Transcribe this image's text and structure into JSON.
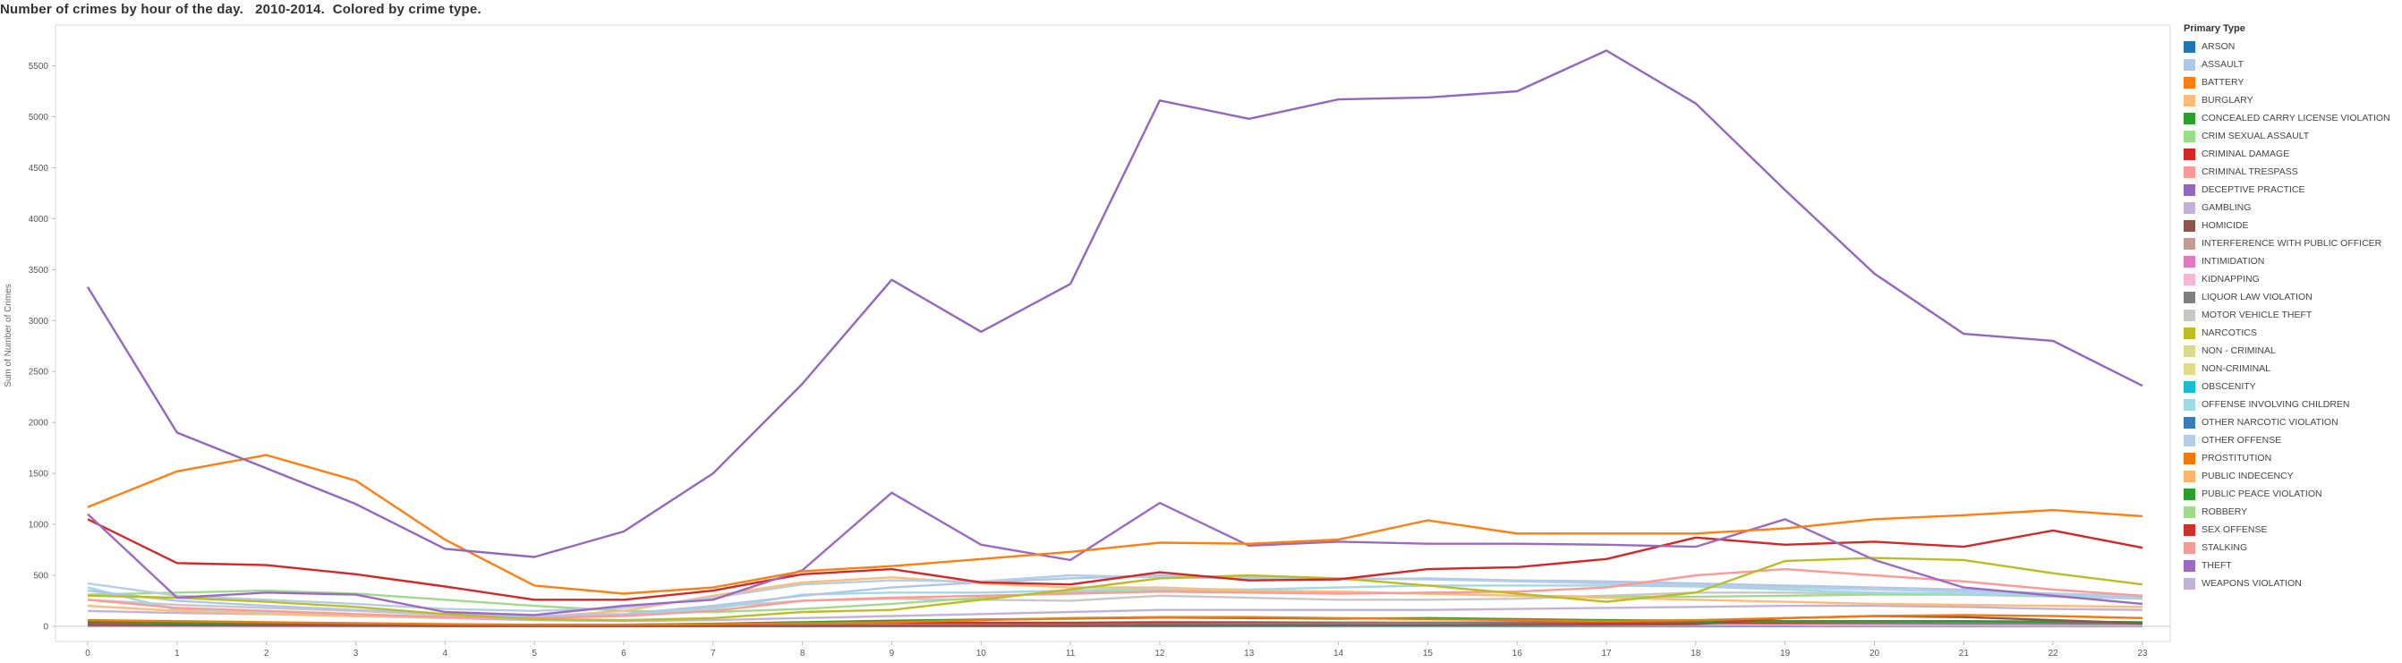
{
  "chart_data": {
    "type": "line",
    "title": "Number of crimes by hour of the day.   2010-2014.  Colored by crime type.",
    "xlabel": "",
    "ylabel": "Sum of Number of Crimes",
    "x": [
      0,
      1,
      2,
      3,
      4,
      5,
      6,
      7,
      8,
      9,
      10,
      11,
      12,
      13,
      14,
      15,
      16,
      17,
      18,
      19,
      20,
      21,
      22,
      23
    ],
    "xticks": [
      0,
      1,
      2,
      3,
      4,
      5,
      6,
      7,
      8,
      9,
      10,
      11,
      12,
      13,
      14,
      15,
      16,
      17,
      18,
      19,
      20,
      21,
      22,
      23
    ],
    "yticks": [
      0,
      500,
      1000,
      1500,
      2000,
      2500,
      3000,
      3500,
      4000,
      4500,
      5000,
      5500
    ],
    "ylim": [
      -150,
      5900
    ],
    "grid": false,
    "legend_title": "Primary Type",
    "legend_position": "right",
    "series": [
      {
        "name": "ARSON",
        "color": "#1f77b4",
        "values": [
          8,
          7,
          6,
          5,
          5,
          4,
          3,
          3,
          4,
          5,
          5,
          6,
          6,
          6,
          6,
          7,
          7,
          7,
          8,
          8,
          9,
          9,
          9,
          9
        ]
      },
      {
        "name": "ASSAULT",
        "color": "#aec7e8",
        "values": [
          350,
          250,
          200,
          160,
          120,
          100,
          120,
          200,
          300,
          380,
          430,
          470,
          500,
          480,
          460,
          470,
          450,
          440,
          420,
          400,
          380,
          360,
          320,
          290
        ]
      },
      {
        "name": "BATTERY",
        "color": "#ff7f0e",
        "values": [
          1170,
          1520,
          1680,
          1430,
          850,
          400,
          320,
          380,
          540,
          590,
          660,
          730,
          820,
          810,
          850,
          1040,
          910,
          910,
          910,
          960,
          1050,
          1090,
          1140,
          1080
        ]
      },
      {
        "name": "BURGLARY",
        "color": "#ffbb78",
        "values": [
          200,
          150,
          120,
          100,
          90,
          90,
          150,
          300,
          430,
          480,
          420,
          380,
          380,
          350,
          340,
          320,
          300,
          280,
          260,
          240,
          220,
          210,
          200,
          190
        ]
      },
      {
        "name": "CONCEALED CARRY LICENSE VIOLATION",
        "color": "#2ca02c",
        "values": [
          2,
          2,
          1,
          1,
          1,
          1,
          1,
          1,
          1,
          1,
          2,
          2,
          2,
          2,
          2,
          2,
          2,
          2,
          2,
          2,
          2,
          2,
          2,
          2
        ]
      },
      {
        "name": "CRIM SEXUAL ASSAULT",
        "color": "#98df8a",
        "values": [
          30,
          25,
          20,
          15,
          10,
          8,
          8,
          10,
          12,
          15,
          18,
          20,
          22,
          22,
          22,
          22,
          22,
          24,
          26,
          28,
          30,
          30,
          30,
          30
        ]
      },
      {
        "name": "CRIMINAL DAMAGE",
        "color": "#d62728",
        "values": [
          1050,
          620,
          600,
          510,
          390,
          260,
          260,
          350,
          510,
          560,
          430,
          410,
          530,
          450,
          460,
          560,
          580,
          660,
          870,
          800,
          830,
          780,
          940,
          770
        ]
      },
      {
        "name": "CRIMINAL TRESPASS",
        "color": "#ff9896",
        "values": [
          260,
          180,
          150,
          120,
          90,
          80,
          100,
          150,
          250,
          280,
          300,
          320,
          340,
          330,
          320,
          330,
          340,
          380,
          500,
          560,
          500,
          440,
          360,
          300
        ]
      },
      {
        "name": "DECEPTIVE PRACTICE",
        "color": "#9467bd",
        "values": [
          3330,
          1900,
          1550,
          1200,
          760,
          680,
          930,
          1500,
          2380,
          3400,
          2890,
          3360,
          5160,
          4980,
          5170,
          5190,
          5250,
          5650,
          5130,
          4280,
          3460,
          2870,
          2800,
          2360
        ]
      },
      {
        "name": "GAMBLING",
        "color": "#c5b0d5",
        "values": [
          5,
          3,
          2,
          1,
          1,
          1,
          1,
          1,
          1,
          2,
          3,
          4,
          5,
          6,
          6,
          8,
          10,
          12,
          14,
          14,
          12,
          10,
          8,
          6
        ]
      },
      {
        "name": "HOMICIDE",
        "color": "#8c564b",
        "values": [
          12,
          10,
          8,
          6,
          4,
          3,
          2,
          2,
          2,
          3,
          3,
          4,
          5,
          6,
          8,
          10,
          12,
          15,
          20,
          80,
          100,
          90,
          60,
          30
        ]
      },
      {
        "name": "INTERFERENCE WITH PUBLIC OFFICER",
        "color": "#c49c94",
        "values": [
          20,
          15,
          12,
          10,
          8,
          6,
          6,
          8,
          10,
          14,
          18,
          20,
          22,
          22,
          22,
          24,
          26,
          28,
          30,
          30,
          28,
          26,
          24,
          22
        ]
      },
      {
        "name": "INTIMIDATION",
        "color": "#e377c2",
        "values": [
          3,
          2,
          2,
          1,
          1,
          1,
          1,
          2,
          3,
          4,
          4,
          5,
          5,
          5,
          5,
          5,
          5,
          4,
          4,
          4,
          3,
          3,
          3,
          3
        ]
      },
      {
        "name": "KIDNAPPING",
        "color": "#f7b6d2",
        "values": [
          8,
          6,
          5,
          4,
          3,
          2,
          3,
          6,
          10,
          12,
          12,
          12,
          12,
          12,
          12,
          12,
          12,
          12,
          12,
          12,
          11,
          10,
          9,
          8
        ]
      },
      {
        "name": "LIQUOR LAW VIOLATION",
        "color": "#7f7f7f",
        "values": [
          20,
          14,
          10,
          6,
          3,
          2,
          2,
          3,
          5,
          8,
          12,
          16,
          20,
          25,
          30,
          35,
          40,
          45,
          50,
          45,
          40,
          35,
          30,
          25
        ]
      },
      {
        "name": "MOTOR VEHICLE THEFT",
        "color": "#c7c7c7",
        "values": [
          260,
          210,
          180,
          150,
          110,
          90,
          110,
          190,
          250,
          270,
          260,
          250,
          300,
          280,
          260,
          260,
          270,
          300,
          330,
          330,
          320,
          310,
          290,
          270
        ]
      },
      {
        "name": "NARCOTICS",
        "color": "#bcbd22",
        "values": [
          300,
          280,
          240,
          190,
          120,
          70,
          60,
          80,
          140,
          160,
          260,
          360,
          470,
          500,
          470,
          400,
          320,
          240,
          330,
          640,
          670,
          650,
          520,
          410
        ]
      },
      {
        "name": "NON - CRIMINAL",
        "color": "#dbdb8d",
        "values": [
          1,
          0,
          0,
          0,
          0,
          0,
          0,
          1,
          1,
          1,
          1,
          1,
          1,
          1,
          1,
          1,
          1,
          1,
          1,
          1,
          1,
          1,
          1,
          1
        ]
      },
      {
        "name": "NON-CRIMINAL",
        "color": "#e0dc8a",
        "values": [
          2,
          1,
          1,
          1,
          0,
          0,
          0,
          1,
          1,
          2,
          2,
          2,
          2,
          2,
          2,
          2,
          2,
          2,
          2,
          2,
          2,
          2,
          2,
          2
        ]
      },
      {
        "name": "OBSCENITY",
        "color": "#17becf",
        "values": [
          2,
          1,
          1,
          1,
          1,
          1,
          1,
          1,
          1,
          1,
          2,
          2,
          2,
          2,
          2,
          2,
          2,
          2,
          2,
          2,
          2,
          2,
          2,
          2
        ]
      },
      {
        "name": "OFFENSE INVOLVING CHILDREN",
        "color": "#9edae5",
        "values": [
          380,
          160,
          130,
          100,
          80,
          80,
          110,
          170,
          310,
          330,
          330,
          350,
          370,
          360,
          380,
          400,
          400,
          400,
          390,
          360,
          330,
          320,
          300,
          280
        ]
      },
      {
        "name": "OTHER NARCOTIC VIOLATION",
        "color": "#3a7cb8",
        "values": [
          1,
          0,
          0,
          0,
          0,
          0,
          0,
          0,
          0,
          0,
          0,
          0,
          0,
          0,
          0,
          0,
          0,
          0,
          0,
          0,
          0,
          0,
          0,
          0
        ]
      },
      {
        "name": "OTHER OFFENSE",
        "color": "#b6cde6",
        "values": [
          420,
          300,
          260,
          220,
          170,
          150,
          180,
          280,
          410,
          450,
          440,
          500,
          480,
          470,
          470,
          460,
          440,
          420,
          400,
          380,
          360,
          340,
          320,
          300
        ]
      },
      {
        "name": "PROSTITUTION",
        "color": "#f5780f",
        "values": [
          60,
          50,
          40,
          30,
          20,
          15,
          15,
          20,
          30,
          40,
          60,
          80,
          90,
          90,
          80,
          70,
          60,
          50,
          60,
          80,
          100,
          110,
          100,
          80
        ]
      },
      {
        "name": "PUBLIC INDECENCY",
        "color": "#fdb46c",
        "values": [
          1,
          1,
          1,
          0,
          0,
          0,
          0,
          1,
          1,
          1,
          1,
          1,
          1,
          1,
          1,
          1,
          1,
          1,
          1,
          1,
          1,
          1,
          1,
          1
        ]
      },
      {
        "name": "PUBLIC PEACE VIOLATION",
        "color": "#28a02c",
        "values": [
          50,
          30,
          25,
          20,
          15,
          12,
          15,
          25,
          40,
          55,
          65,
          75,
          85,
          80,
          75,
          80,
          70,
          60,
          55,
          50,
          50,
          50,
          45,
          40
        ]
      },
      {
        "name": "ROBBERY",
        "color": "#a3d98b",
        "values": [
          310,
          330,
          350,
          320,
          260,
          200,
          150,
          140,
          170,
          220,
          280,
          340,
          360,
          350,
          330,
          320,
          300,
          290,
          290,
          300,
          310,
          310,
          300,
          290
        ]
      },
      {
        "name": "SEX OFFENSE",
        "color": "#d02f2a",
        "values": [
          40,
          30,
          25,
          20,
          15,
          12,
          14,
          20,
          30,
          35,
          35,
          35,
          40,
          38,
          36,
          35,
          34,
          34,
          34,
          34,
          34,
          32,
          30,
          28
        ]
      },
      {
        "name": "STALKING",
        "color": "#f29b97",
        "values": [
          5,
          3,
          3,
          2,
          2,
          2,
          2,
          4,
          6,
          8,
          8,
          8,
          8,
          8,
          8,
          8,
          8,
          8,
          8,
          7,
          7,
          6,
          6,
          5
        ]
      },
      {
        "name": "THEFT",
        "color": "#9b6bc2",
        "values": [
          1100,
          280,
          330,
          310,
          140,
          110,
          200,
          260,
          550,
          1310,
          800,
          650,
          1210,
          790,
          830,
          810,
          810,
          800,
          780,
          1050,
          650,
          380,
          300,
          220
        ]
      },
      {
        "name": "WEAPONS VIOLATION",
        "color": "#c2b2d8",
        "values": [
          150,
          130,
          120,
          100,
          80,
          60,
          50,
          60,
          80,
          100,
          120,
          140,
          160,
          160,
          160,
          160,
          170,
          180,
          190,
          200,
          200,
          190,
          170,
          160
        ]
      }
    ]
  }
}
